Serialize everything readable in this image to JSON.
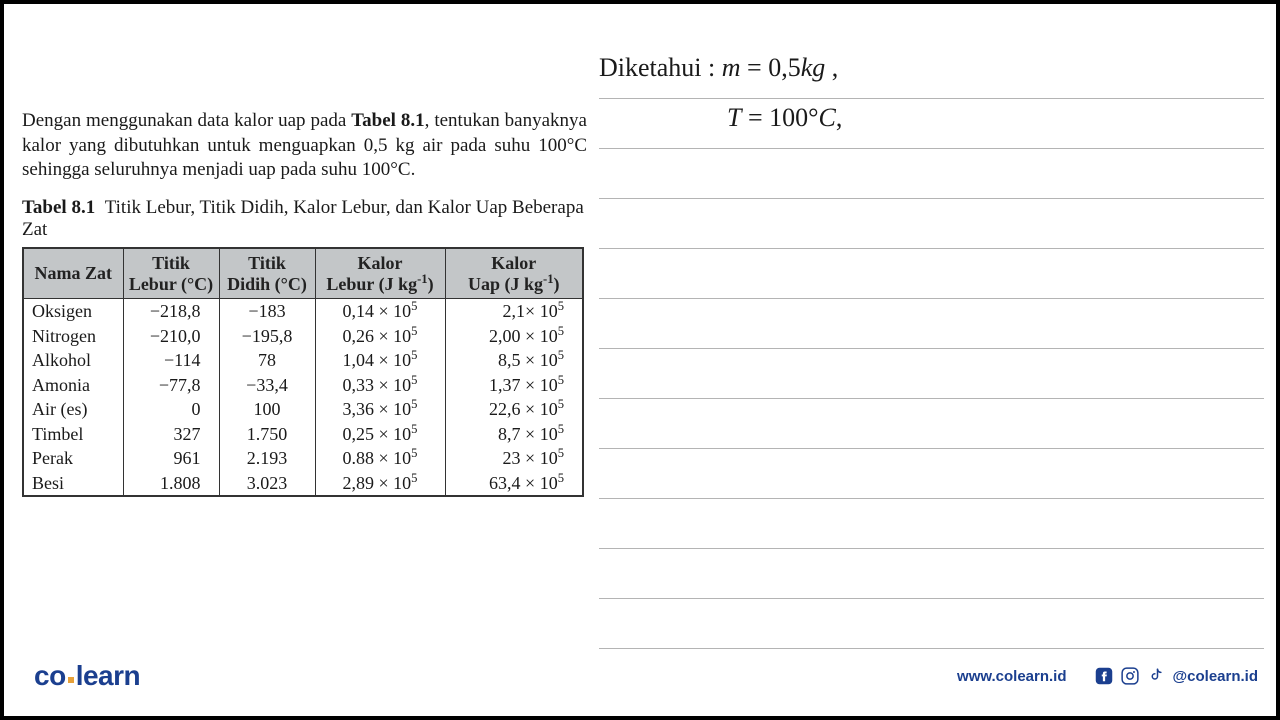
{
  "problem": {
    "text_html": "Dengan menggunakan data kalor uap pada <b>Tabel 8.1</b>, tentukan banyaknya kalor yang dibutuhkan untuk menguapkan 0,5 kg air pada suhu 100°C sehingga seluruhnya menjadi uap pada suhu 100°C."
  },
  "table": {
    "caption_label": "Tabel 8.1",
    "caption_text": "Titik Lebur, Titik Didih, Kalor Lebur, dan Kalor Uap Beberapa Zat",
    "headers": {
      "name": "Nama Zat",
      "melt": "Titik<br>Lebur (°C)",
      "boil": "Titik<br>Didih (°C)",
      "lf": "Kalor<br>Lebur (J kg<span class=\"sup-inv\">-1</span>)",
      "lv": "Kalor<br>Uap (J kg<span class=\"sup-inv\">-1</span>)"
    },
    "col_widths": [
      "100px",
      "96px",
      "96px",
      "130px",
      "138px"
    ],
    "rows": [
      {
        "name": "Oksigen",
        "melt": "−218,8",
        "boil": "−183",
        "lf": "0,14 × 10<sup>5</sup>",
        "lv": "2,1× 10<sup>5</sup>"
      },
      {
        "name": "Nitrogen",
        "melt": "−210,0",
        "boil": "−195,8",
        "lf": "0,26 × 10<sup>5</sup>",
        "lv": "2,00 × 10<sup>5</sup>"
      },
      {
        "name": "Alkohol",
        "melt": "−114",
        "boil": "78",
        "lf": "1,04 × 10<sup>5</sup>",
        "lv": "8,5 × 10<sup>5</sup>"
      },
      {
        "name": "Amonia",
        "melt": "−77,8",
        "boil": "−33,4",
        "lf": "0,33 × 10<sup>5</sup>",
        "lv": "1,37 × 10<sup>5</sup>"
      },
      {
        "name": "Air (es)",
        "melt": "0",
        "boil": "100",
        "lf": "3,36 × 10<sup>5</sup>",
        "lv": "22,6 × 10<sup>5</sup>"
      },
      {
        "name": "Timbel",
        "melt": "327",
        "boil": "1.750",
        "lf": "0,25 × 10<sup>5</sup>",
        "lv": "8,7 × 10<sup>5</sup>"
      },
      {
        "name": "Perak",
        "melt": "961",
        "boil": "2.193",
        "lf": "0.88 × 10<sup>5</sup>",
        "lv": "23 × 10<sup>5</sup>"
      },
      {
        "name": "Besi",
        "melt": "1.808",
        "boil": "3.023",
        "lf": "2,89 × 10<sup>5</sup>",
        "lv": "63,4 × 10<sup>5</sup>"
      }
    ]
  },
  "work": {
    "line1": "Diketahui : <span class=\"it\">m</span> = 0,5<span class=\"it\">kg</span> ,",
    "line2": "<span class=\"it\">T</span> = 100°<span class=\"it\">C</span>,",
    "ruled_line_count": 12,
    "rule_color": "#b4b4b4"
  },
  "footer": {
    "brand_a": "co",
    "brand_b": "learn",
    "url": "www.colearn.id",
    "handle": "@colearn.id",
    "brand_color": "#1b3f8f",
    "accent_color": "#e7a13a"
  }
}
